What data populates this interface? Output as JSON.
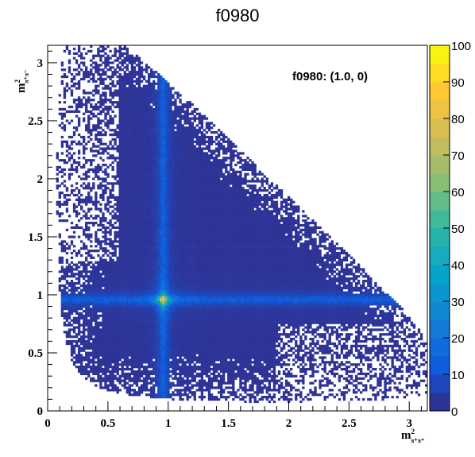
{
  "chart_data": {
    "type": "heatmap",
    "title": "f0980",
    "annotation": "f0980: (1.0, 0)",
    "xlabel": {
      "base": "m",
      "sup": "2",
      "sub": "π⁺π⁺"
    },
    "ylabel": {
      "base": "m",
      "sup": "2",
      "sub": "π⁺π⁻"
    },
    "xlim": [
      0,
      3.15
    ],
    "ylim": [
      0,
      3.15
    ],
    "x_ticks": [
      "0",
      "0.5",
      "1",
      "1.5",
      "2",
      "2.5",
      "3"
    ],
    "y_ticks": [
      "0",
      "0.5",
      "1",
      "1.5",
      "2",
      "2.5",
      "3"
    ],
    "x_tick_values": [
      0,
      0.5,
      1,
      1.5,
      2,
      2.5,
      3
    ],
    "y_tick_values": [
      0,
      0.5,
      1,
      1.5,
      2,
      2.5,
      3
    ],
    "z_range": [
      0,
      100
    ],
    "z_ticks": [
      "0",
      "10",
      "20",
      "30",
      "40",
      "50",
      "60",
      "70",
      "80",
      "90",
      "100"
    ],
    "z_tick_values": [
      0,
      10,
      20,
      30,
      40,
      50,
      60,
      70,
      80,
      90,
      100
    ],
    "resonance_band_mass_squared": 0.96,
    "peak_location": [
      0.96,
      0.96
    ],
    "peak_value": 98,
    "grid": false,
    "colormap": [
      "#352a87",
      "#0f5cdd",
      "#1481d6",
      "#06a4ca",
      "#2eb7a4",
      "#87bf77",
      "#d1bb59",
      "#fec832",
      "#f9fb0e"
    ]
  }
}
